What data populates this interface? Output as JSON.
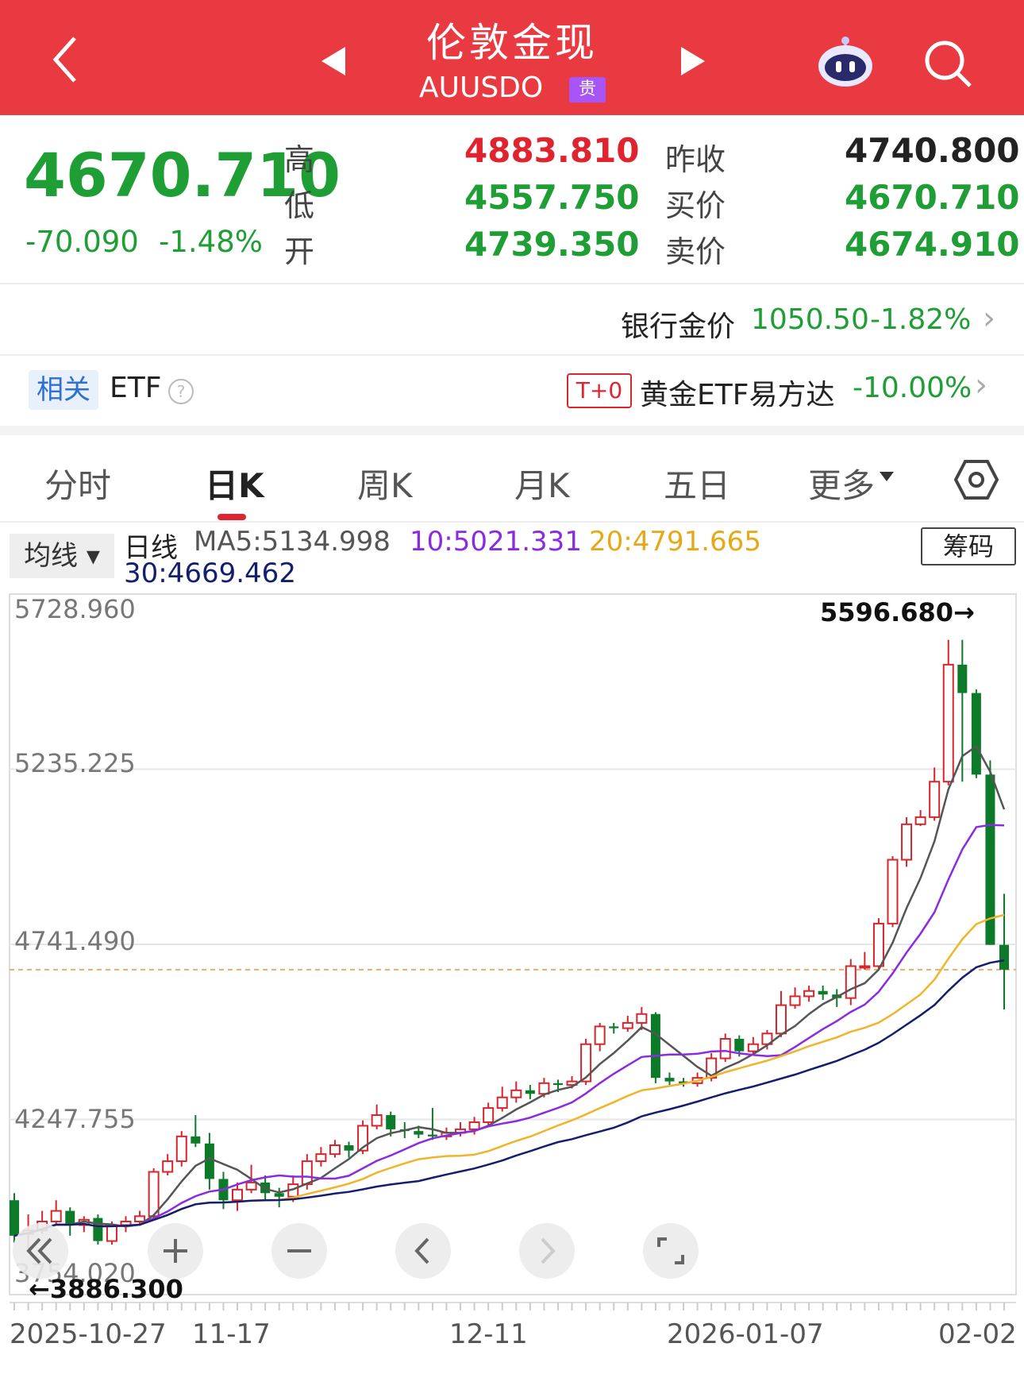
{
  "header": {
    "title": "伦敦金现",
    "code": "AUUSDO",
    "badge": "贵"
  },
  "quote": {
    "last": "4670.710",
    "change": "-70.090",
    "change_pct": "-1.48%",
    "high_label": "高",
    "high": "4883.810",
    "low_label": "低",
    "low": "4557.750",
    "open_label": "开",
    "open": "4739.350",
    "prev_close_label": "昨收",
    "prev_close": "4740.800",
    "bid_label": "买价",
    "bid": "4670.710",
    "ask_label": "卖价",
    "ask": "4674.910"
  },
  "bank": {
    "label": "银行金价",
    "price": "1050.50",
    "pct": "-1.82%"
  },
  "etf": {
    "related": "相关",
    "etf_label": "ETF",
    "tag": "T+0",
    "name": "黄金ETF易方达",
    "pct": "-10.00%"
  },
  "tabs": [
    "分时",
    "日K",
    "周K",
    "月K",
    "五日",
    "更多"
  ],
  "active_tab": 1,
  "indicators": {
    "selector": "均线",
    "line": "日线",
    "ma5": "MA5:5134.998",
    "ma10": "10:5021.331",
    "ma20": "20:4791.665",
    "ma30": "30:4669.462",
    "chip": "筹码"
  },
  "colors": {
    "up": "#d8242c",
    "down": "#0d7a2a",
    "ma5": "#555555",
    "ma10": "#8a2be2",
    "ma20": "#f0b429",
    "ma30": "#141e6e"
  },
  "chart_data": {
    "type": "candlestick",
    "y_axis_labels": [
      "5728.960",
      "5235.225",
      "4741.490",
      "4247.755",
      "3754.020"
    ],
    "ylim": [
      3754.02,
      5728.96
    ],
    "max_marker": "5596.680→",
    "min_marker": "←3886.300",
    "x_labels": [
      "2025-10-27",
      "11-17",
      "12-11",
      "2026-01-07",
      "02-02"
    ],
    "candles": [
      [
        4020,
        3920,
        4040,
        3900
      ],
      [
        3925,
        3935,
        3980,
        3880
      ],
      [
        3935,
        3960,
        3990,
        3925
      ],
      [
        3960,
        3990,
        4020,
        3950
      ],
      [
        3990,
        3950,
        4000,
        3920
      ],
      [
        3950,
        3965,
        3975,
        3930
      ],
      [
        3970,
        3905,
        3980,
        3895
      ],
      [
        3905,
        3950,
        3960,
        3895
      ],
      [
        3950,
        3960,
        3975,
        3930
      ],
      [
        3960,
        3975,
        3990,
        3950
      ],
      [
        3975,
        4100,
        4110,
        3970
      ],
      [
        4100,
        4130,
        4150,
        4090
      ],
      [
        4130,
        4200,
        4215,
        4115
      ],
      [
        4200,
        4180,
        4260,
        4170
      ],
      [
        4180,
        4080,
        4210,
        4050
      ],
      [
        4080,
        4020,
        4100,
        3995
      ],
      [
        4020,
        4050,
        4070,
        3990
      ],
      [
        4050,
        4070,
        4120,
        4040
      ],
      [
        4070,
        4040,
        4090,
        4020
      ],
      [
        4040,
        4030,
        4055,
        4000
      ],
      [
        4030,
        4065,
        4090,
        4015
      ],
      [
        4065,
        4130,
        4150,
        4050
      ],
      [
        4130,
        4150,
        4170,
        4115
      ],
      [
        4150,
        4175,
        4190,
        4140
      ],
      [
        4175,
        4160,
        4185,
        4140
      ],
      [
        4160,
        4230,
        4245,
        4150
      ],
      [
        4230,
        4260,
        4290,
        4220
      ],
      [
        4260,
        4220,
        4270,
        4200
      ],
      [
        4220,
        4215,
        4240,
        4195
      ],
      [
        4215,
        4205,
        4230,
        4195
      ],
      [
        4205,
        4200,
        4280,
        4190
      ],
      [
        4200,
        4210,
        4225,
        4190
      ],
      [
        4210,
        4220,
        4240,
        4200
      ],
      [
        4220,
        4240,
        4255,
        4205
      ],
      [
        4240,
        4280,
        4295,
        4230
      ],
      [
        4280,
        4310,
        4340,
        4270
      ],
      [
        4310,
        4330,
        4355,
        4295
      ],
      [
        4330,
        4320,
        4345,
        4305
      ],
      [
        4320,
        4350,
        4365,
        4310
      ],
      [
        4350,
        4345,
        4360,
        4325
      ],
      [
        4345,
        4355,
        4370,
        4335
      ],
      [
        4355,
        4460,
        4475,
        4345
      ],
      [
        4460,
        4510,
        4520,
        4440
      ],
      [
        4510,
        4505,
        4520,
        4490
      ],
      [
        4505,
        4520,
        4540,
        4495
      ],
      [
        4520,
        4545,
        4565,
        4500
      ],
      [
        4545,
        4365,
        4550,
        4350
      ],
      [
        4365,
        4355,
        4380,
        4345
      ],
      [
        4355,
        4350,
        4365,
        4340
      ],
      [
        4350,
        4365,
        4380,
        4340
      ],
      [
        4365,
        4420,
        4435,
        4355
      ],
      [
        4420,
        4475,
        4490,
        4410
      ],
      [
        4475,
        4440,
        4485,
        4425
      ],
      [
        4440,
        4460,
        4480,
        4430
      ],
      [
        4460,
        4490,
        4500,
        4445
      ],
      [
        4490,
        4570,
        4610,
        4480
      ],
      [
        4570,
        4595,
        4620,
        4560
      ],
      [
        4595,
        4610,
        4625,
        4580
      ],
      [
        4610,
        4600,
        4625,
        4585
      ],
      [
        4600,
        4590,
        4615,
        4565
      ],
      [
        4590,
        4680,
        4700,
        4570
      ],
      [
        4680,
        4680,
        4720,
        4670
      ],
      [
        4680,
        4800,
        4815,
        4670
      ],
      [
        4800,
        4980,
        4990,
        4790
      ],
      [
        4980,
        5080,
        5100,
        4960
      ],
      [
        5080,
        5100,
        5120,
        5075
      ],
      [
        5100,
        5200,
        5240,
        5090
      ],
      [
        5200,
        5530,
        5600,
        5190
      ],
      [
        5530,
        5450,
        5600,
        5200
      ],
      [
        5450,
        5220,
        5460,
        5210
      ],
      [
        5220,
        4740,
        5260,
        4740
      ],
      [
        4740,
        4670,
        4884,
        4558
      ]
    ],
    "ma": {
      "ma5": {
        "name": "MA5",
        "color": "#555555"
      },
      "ma10": {
        "name": "10",
        "color": "#8a2be2"
      },
      "ma20": {
        "name": "20",
        "color": "#f0b429"
      },
      "ma30": {
        "name": "30",
        "color": "#141e6e"
      }
    }
  }
}
